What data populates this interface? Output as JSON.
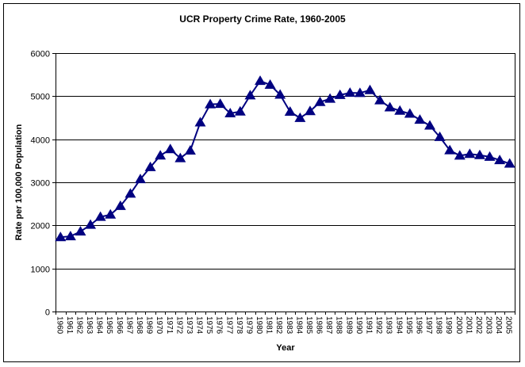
{
  "chart_data": {
    "type": "line",
    "title": "UCR Property Crime Rate, 1960-2005",
    "xlabel": "Year",
    "ylabel": "Rate per 100,000 Population",
    "ylim": [
      0,
      6000
    ],
    "yticks": [
      0,
      1000,
      2000,
      3000,
      4000,
      5000,
      6000
    ],
    "grid": true,
    "marker": "triangle",
    "series_color": "#000080",
    "categories": [
      "1960",
      "1961",
      "1962",
      "1963",
      "1964",
      "1965",
      "1966",
      "1967",
      "1968",
      "1969",
      "1970",
      "1971",
      "1972",
      "1973",
      "1974",
      "1975",
      "1976",
      "1977",
      "1978",
      "1979",
      "1980",
      "1981",
      "1982",
      "1983",
      "1984",
      "1985",
      "1986",
      "1987",
      "1988",
      "1989",
      "1990",
      "1991",
      "1992",
      "1993",
      "1994",
      "1995",
      "1996",
      "1997",
      "1998",
      "1999",
      "2000",
      "2001",
      "2002",
      "2003",
      "2004",
      "2005"
    ],
    "values": [
      1726,
      1747,
      1857,
      2012,
      2197,
      2249,
      2450,
      2736,
      3071,
      3351,
      3621,
      3768,
      3560,
      3737,
      4389,
      4811,
      4820,
      4602,
      4642,
      5017,
      5353,
      5264,
      5033,
      4638,
      4493,
      4651,
      4863,
      4940,
      5027,
      5078,
      5073,
      5140,
      4903,
      4740,
      4660,
      4591,
      4451,
      4316,
      4052,
      3744,
      3618,
      3658,
      3631,
      3591,
      3514,
      3432
    ]
  }
}
